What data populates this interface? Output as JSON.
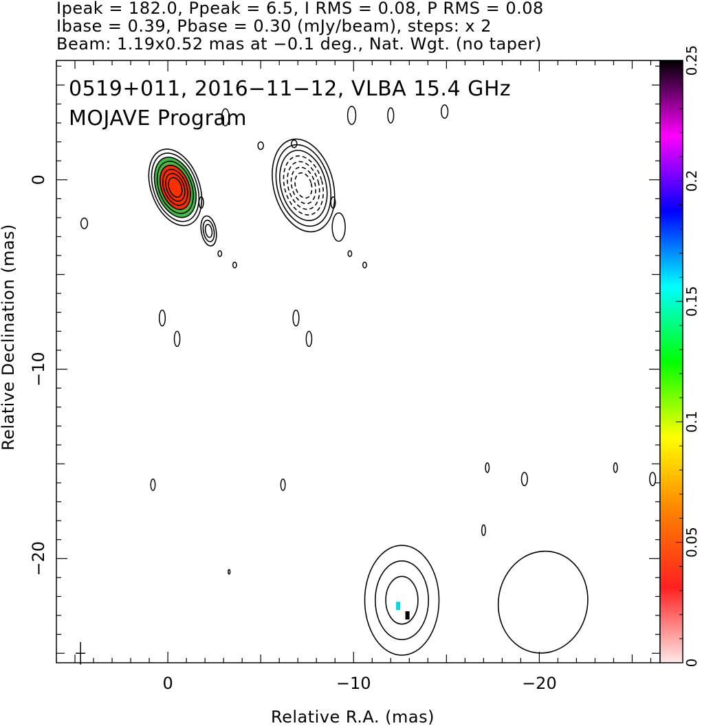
{
  "header": {
    "line1": "Ipeak = 182.0, Ppeak = 6.5, I RMS = 0.08, P RMS = 0.08",
    "line2": "Ibase = 0.39, Pbase = 0.30 (mJy/beam), steps: x 2",
    "line3": "Beam: 1.19x0.52 mas at −0.1 deg., Nat. Wgt. (no taper)"
  },
  "annotation": {
    "line1": "0519+011, 2016−11−12, VLBA 15.4 GHz",
    "line2": "MOJAVE Program"
  },
  "chart_data": {
    "type": "heatmap",
    "xlabel": "Relative R.A. (mas)",
    "ylabel": "Relative Declination (mas)",
    "xlim": [
      6,
      -26.5
    ],
    "ylim": [
      -25.5,
      6.3
    ],
    "xticks": [
      0,
      -10,
      -20
    ],
    "xtick_labels": [
      "0",
      "−10",
      "−20"
    ],
    "yticks": [
      0,
      -10,
      -20
    ],
    "ytick_labels": [
      "0",
      "−10",
      "−20"
    ],
    "colorbar": {
      "range": [
        0,
        0.25
      ],
      "ticks": [
        0,
        0.05,
        0.1,
        0.15,
        0.2,
        0.25
      ],
      "tick_labels": [
        "0",
        "0.05",
        "0.1",
        "0.15",
        "0.2",
        "0.25"
      ],
      "colors": [
        "#ffe8e8",
        "#ff2020",
        "#ff8000",
        "#ffff00",
        "#00ff00",
        "#00ffff",
        "#0000ff",
        "#ff00ff",
        "#000000"
      ]
    },
    "features": [
      {
        "name": "core",
        "x": -0.4,
        "y": -0.4,
        "a": 1.3,
        "b": 2.1,
        "angle": -20,
        "levels": 8,
        "fill": true,
        "colors": [
          "#ff2a00",
          "#ff6000",
          "#c8e000",
          "#40c040"
        ]
      },
      {
        "name": "jet-knot",
        "x": -7.3,
        "y": -0.3,
        "a": 1.6,
        "b": 2.5,
        "angle": -15,
        "levels": 7,
        "fill": false,
        "dashed_inner": true
      },
      {
        "name": "knot-2",
        "x": -2.2,
        "y": -2.7,
        "a": 0.4,
        "b": 0.8,
        "angle": -10,
        "levels": 3,
        "fill": false
      },
      {
        "name": "feature-south",
        "x": -12.6,
        "y": -22.2,
        "a": 2.0,
        "b": 2.9,
        "angle": 0,
        "levels": 3,
        "fill": false,
        "pol": [
          {
            "x": -12.4,
            "y": -22.5,
            "color": "#00d8e8"
          },
          {
            "x": -12.9,
            "y": -23.0,
            "color": "#000000"
          }
        ]
      },
      {
        "name": "feature-southwest",
        "x": -20.2,
        "y": -22.3,
        "a": 2.4,
        "b": 2.7,
        "angle": 10,
        "levels": 1,
        "fill": false
      }
    ],
    "blobs": [
      {
        "x": 4.5,
        "y": -2.3,
        "a": 0.18,
        "b": 0.28
      },
      {
        "x": -3.1,
        "y": 3.3,
        "a": 0.2,
        "b": 0.45
      },
      {
        "x": -5.0,
        "y": 1.8,
        "a": 0.15,
        "b": 0.2
      },
      {
        "x": -9.9,
        "y": 3.4,
        "a": 0.22,
        "b": 0.48
      },
      {
        "x": -12.0,
        "y": 3.4,
        "a": 0.16,
        "b": 0.4
      },
      {
        "x": -14.9,
        "y": 3.6,
        "a": 0.18,
        "b": 0.35
      },
      {
        "x": -6.8,
        "y": 1.9,
        "a": 0.15,
        "b": 0.2
      },
      {
        "x": -1.8,
        "y": -1.2,
        "a": 0.12,
        "b": 0.3
      },
      {
        "x": -8.9,
        "y": -1.2,
        "a": 0.12,
        "b": 0.3
      },
      {
        "x": -9.2,
        "y": -2.5,
        "a": 0.35,
        "b": 0.75
      },
      {
        "x": -2.8,
        "y": -3.9,
        "a": 0.1,
        "b": 0.15
      },
      {
        "x": -3.6,
        "y": -4.5,
        "a": 0.1,
        "b": 0.15
      },
      {
        "x": -9.8,
        "y": -3.9,
        "a": 0.1,
        "b": 0.15
      },
      {
        "x": -10.6,
        "y": -4.5,
        "a": 0.1,
        "b": 0.15
      },
      {
        "x": 0.3,
        "y": -7.3,
        "a": 0.16,
        "b": 0.42
      },
      {
        "x": -0.5,
        "y": -8.4,
        "a": 0.15,
        "b": 0.4
      },
      {
        "x": -6.9,
        "y": -7.3,
        "a": 0.16,
        "b": 0.42
      },
      {
        "x": -7.6,
        "y": -8.4,
        "a": 0.15,
        "b": 0.4
      },
      {
        "x": 0.8,
        "y": -16.1,
        "a": 0.12,
        "b": 0.3
      },
      {
        "x": -6.2,
        "y": -16.1,
        "a": 0.12,
        "b": 0.3
      },
      {
        "x": -17.2,
        "y": -15.2,
        "a": 0.1,
        "b": 0.25
      },
      {
        "x": -19.2,
        "y": -15.8,
        "a": 0.16,
        "b": 0.35
      },
      {
        "x": -24.1,
        "y": -15.2,
        "a": 0.1,
        "b": 0.25
      },
      {
        "x": -26.1,
        "y": -15.8,
        "a": 0.16,
        "b": 0.35
      },
      {
        "x": -17.0,
        "y": -18.5,
        "a": 0.1,
        "b": 0.28
      },
      {
        "x": -3.3,
        "y": -20.7,
        "a": 0.05,
        "b": 0.12
      }
    ],
    "beam": {
      "x": 4.7,
      "y": -25.0,
      "major": 1.19,
      "minor": 0.52,
      "pa": -0.1
    }
  }
}
